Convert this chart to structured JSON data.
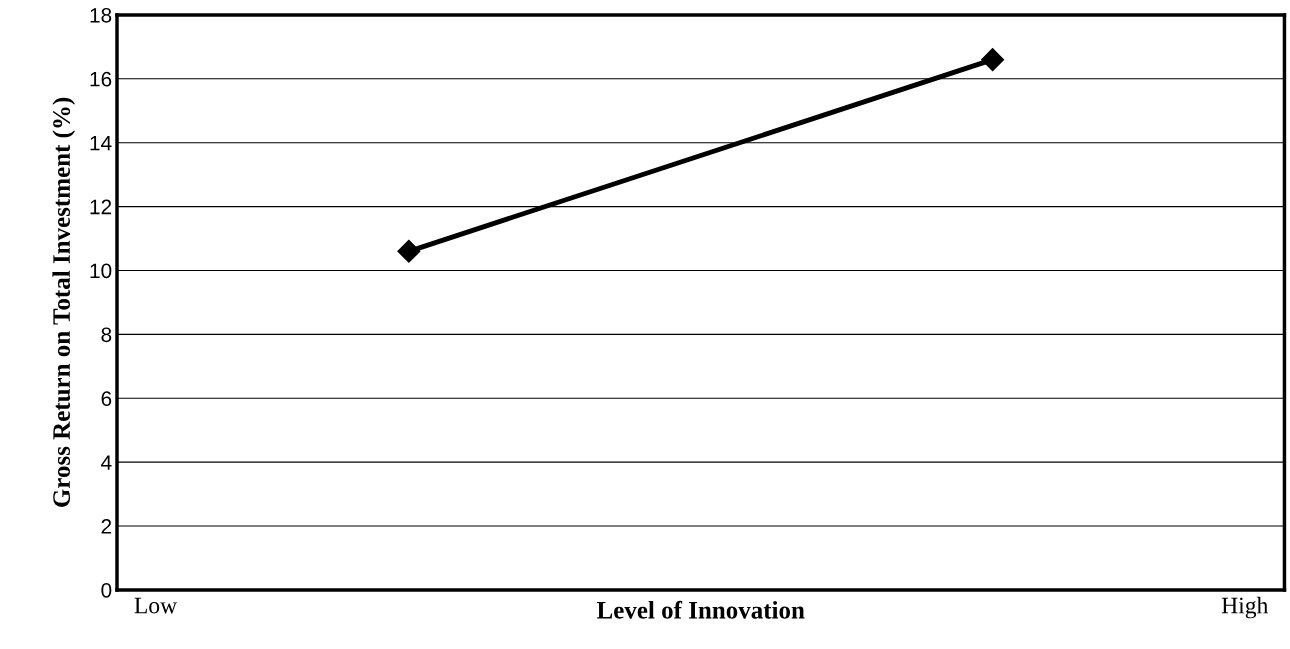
{
  "chart_data": {
    "type": "line",
    "xlabel": "Level of Innovation",
    "ylabel": "Gross Return on Total Investment (%)",
    "categories": [
      null,
      null
    ],
    "series": [
      {
        "color": "#000000",
        "values": [
          10.6,
          16.6
        ]
      }
    ],
    "marker": "diamond",
    "line_style": "solid",
    "ylim": [
      0,
      18
    ],
    "yticks": [
      0,
      2,
      4,
      6,
      8,
      10,
      12,
      14,
      16,
      18
    ],
    "grid": "y",
    "legend": false,
    "annotations": [
      "Low",
      "High"
    ]
  }
}
